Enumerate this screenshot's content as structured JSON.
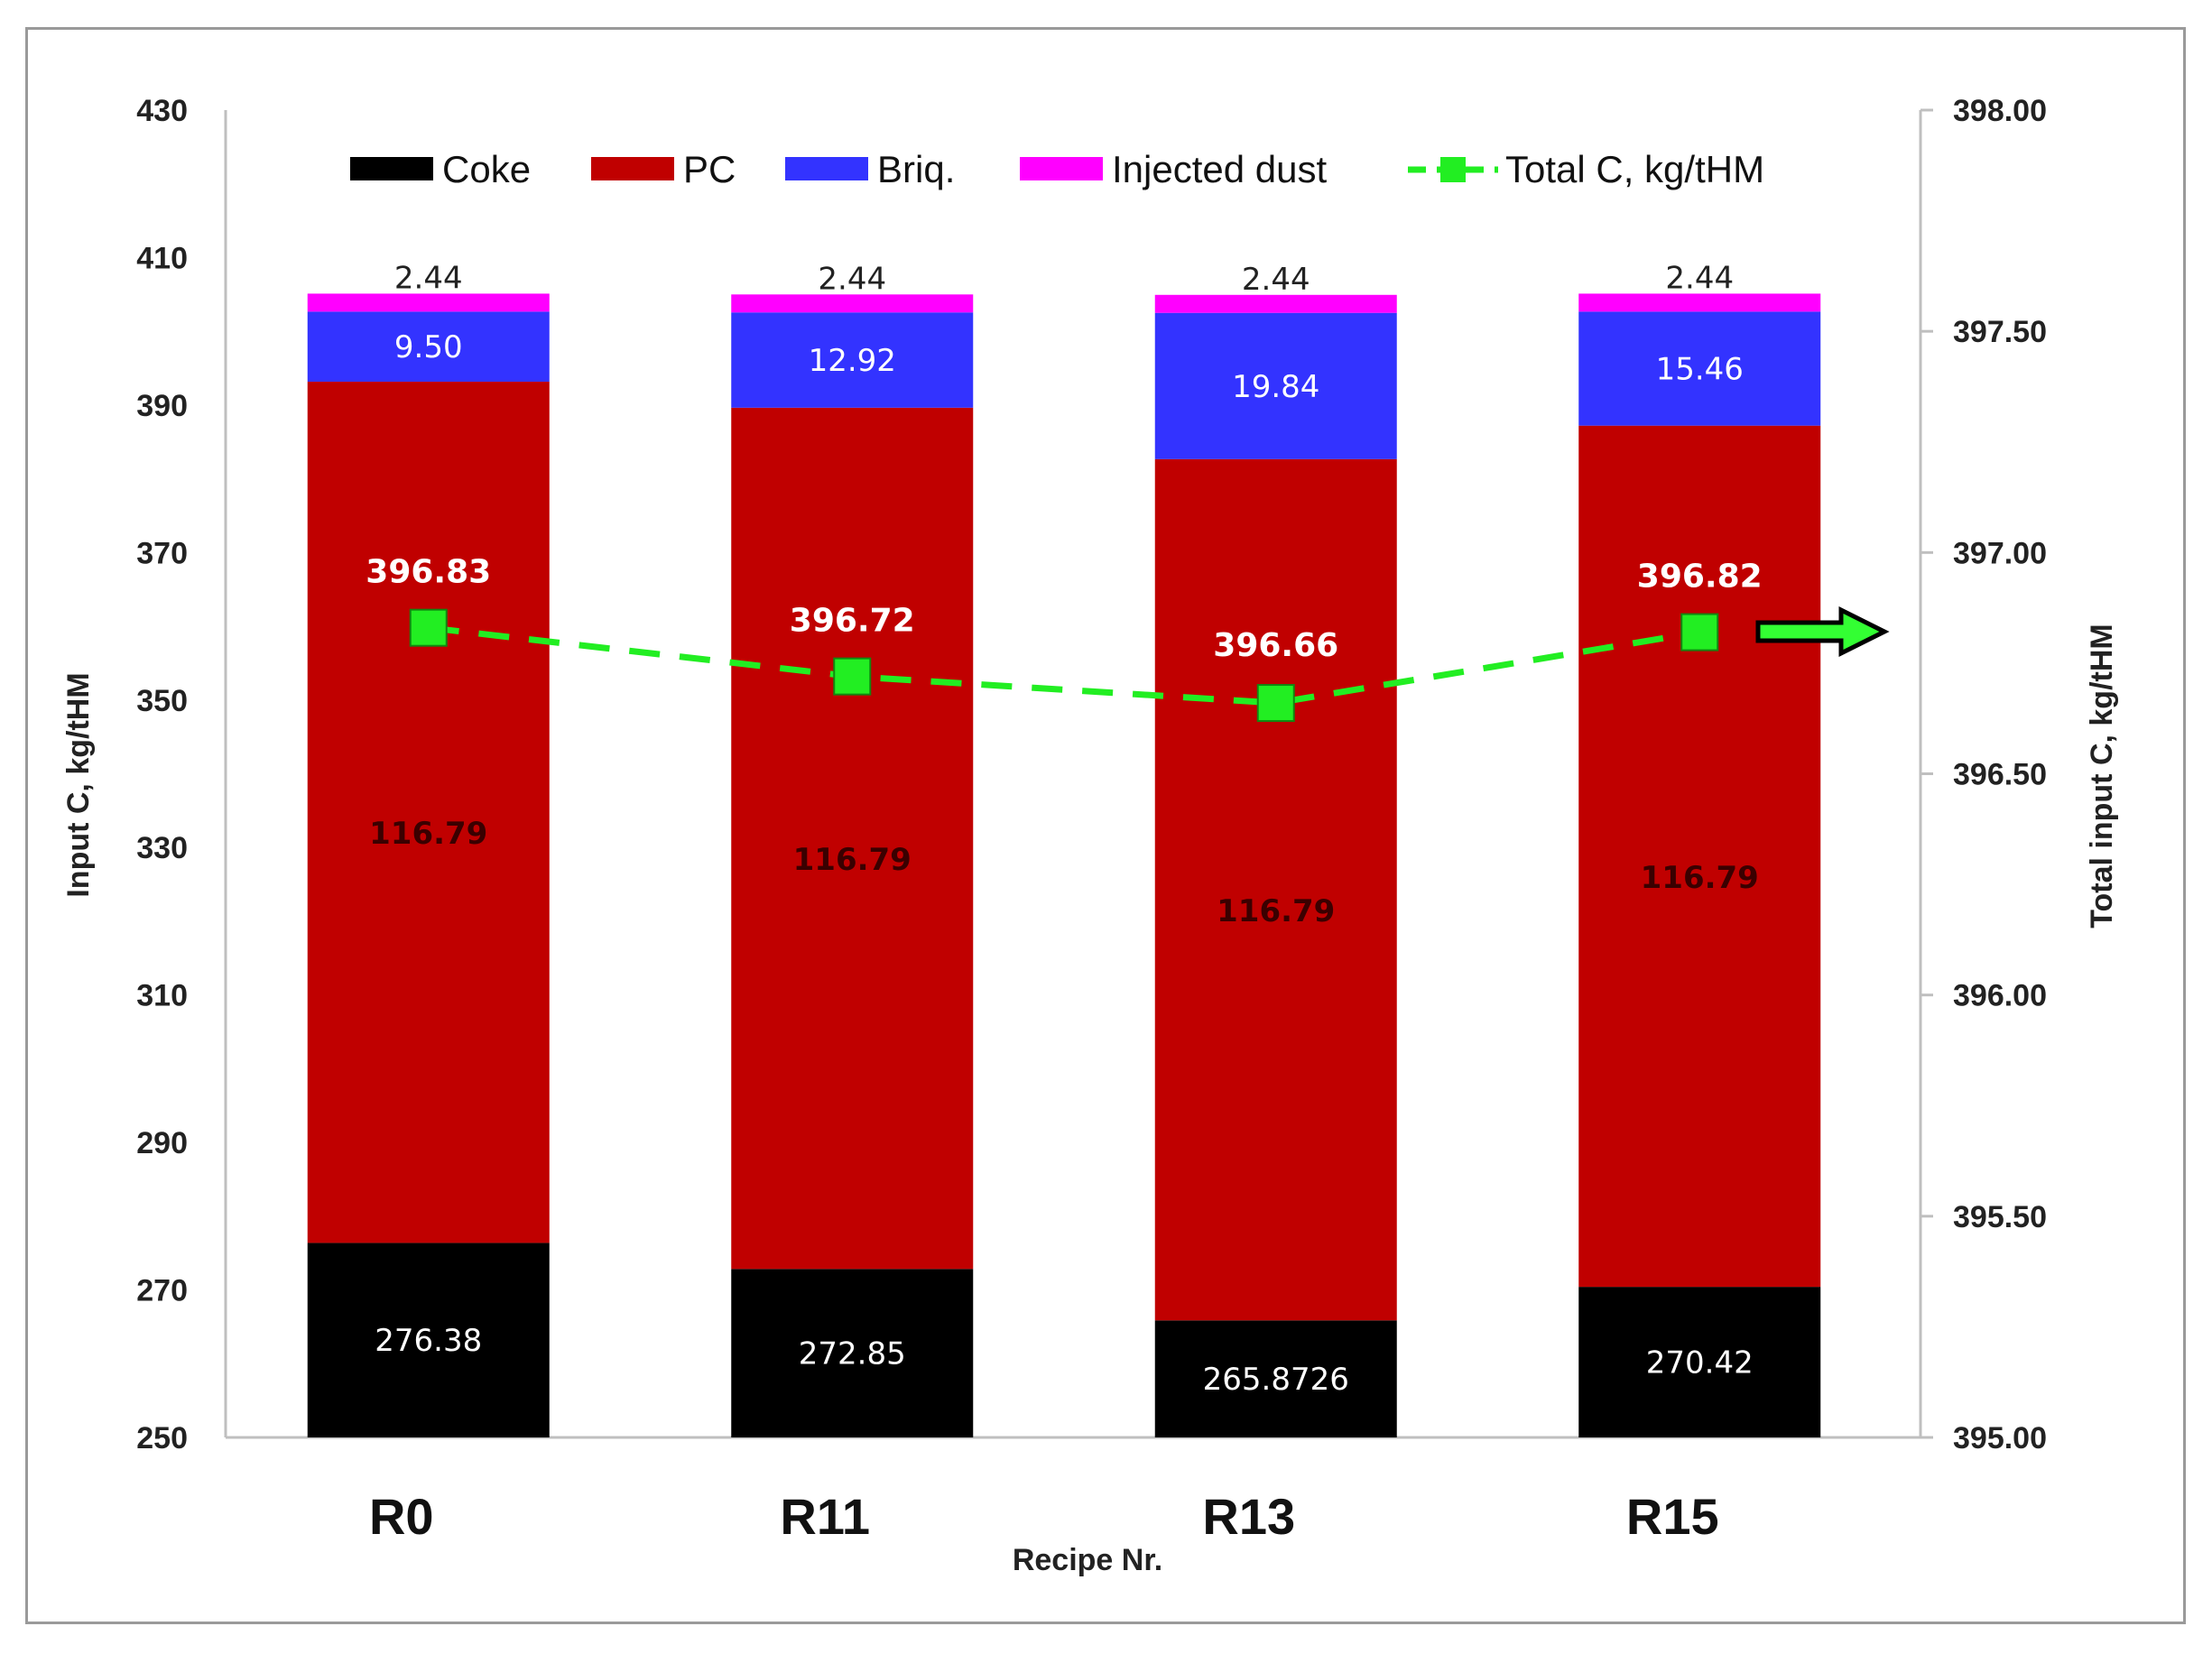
{
  "chart_data": {
    "type": "bar",
    "stacked": true,
    "xlabel": "Recipe Nr.",
    "ylabel": "Input C, kg/tHM",
    "y2label": "Total input C, kg/tHM",
    "ylim": [
      250,
      430
    ],
    "yticks": [
      "250",
      "270",
      "290",
      "310",
      "330",
      "350",
      "370",
      "390",
      "410",
      "430"
    ],
    "y2lim": [
      395.0,
      398.0
    ],
    "y2ticks": [
      "395.00",
      "395.50",
      "396.00",
      "396.50",
      "397.00",
      "397.50",
      "398.00"
    ],
    "categories": [
      "R0",
      "R11",
      "R13",
      "R15"
    ],
    "series": [
      {
        "name": "Coke",
        "color": "#000000",
        "label_color": "#ffffff",
        "values": [
          276.38,
          272.85,
          265.8726,
          270.42
        ],
        "labels": [
          "276.38",
          "272.85",
          "265.8726",
          "270.42"
        ]
      },
      {
        "name": "PC",
        "color": "#c00000",
        "label_color": "#3a0000",
        "values": [
          116.79,
          116.79,
          116.79,
          116.79
        ],
        "labels": [
          "116.79",
          "116.79",
          "116.79",
          "116.79"
        ]
      },
      {
        "name": "Briq.",
        "color": "#3333ff",
        "label_color": "#ffffff",
        "values": [
          9.5,
          12.92,
          19.84,
          15.46
        ],
        "labels": [
          "9.50",
          "12.92",
          "19.84",
          "15.46"
        ]
      },
      {
        "name": "Injected dust",
        "color": "#ff00ff",
        "label_color": "#222222",
        "values": [
          2.44,
          2.44,
          2.44,
          2.44
        ],
        "labels": [
          "2.44",
          "2.44",
          "2.44",
          "2.44"
        ]
      }
    ],
    "line_series": {
      "name": "Total C, kg/tHM",
      "axis": "right",
      "color": "#22ee22",
      "style": "dashed",
      "marker": "square",
      "values": [
        396.83,
        396.72,
        396.66,
        396.82
      ],
      "labels": [
        "396.83",
        "396.72",
        "396.66",
        "396.82"
      ]
    },
    "legend_position": "top",
    "grid": false,
    "annotation": "green arrow pointing to the right axis"
  }
}
